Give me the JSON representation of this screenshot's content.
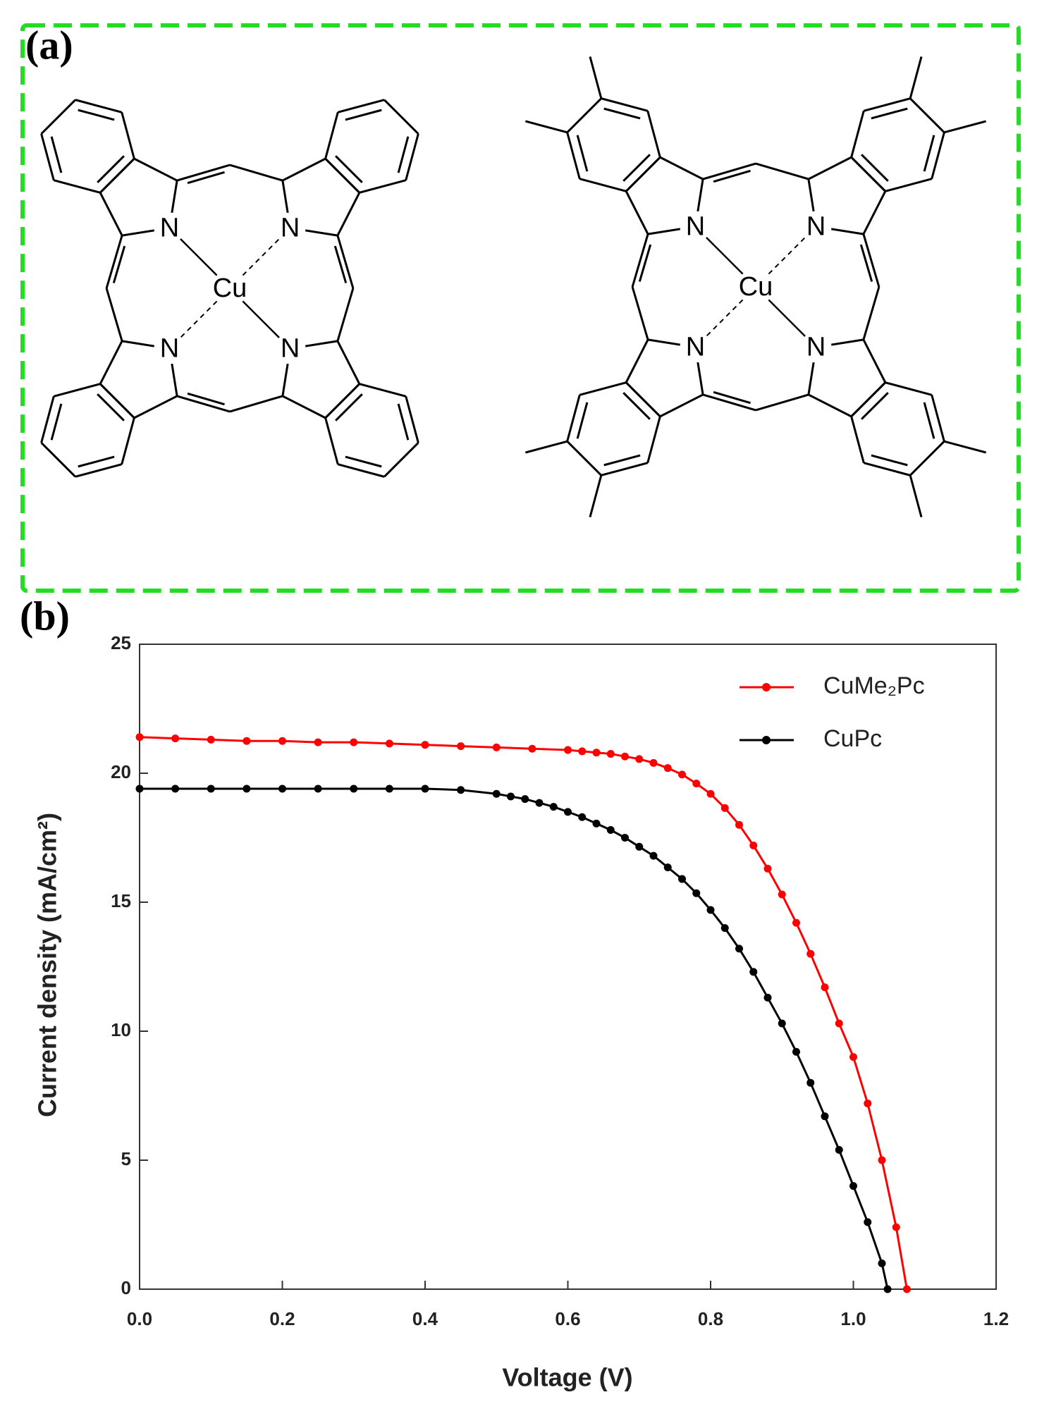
{
  "figure": {
    "panel_a_label": "(a)",
    "panel_b_label": "(b)",
    "molecules": [
      {
        "atoms": [
          "N",
          "N",
          "N",
          "N",
          "Cu"
        ]
      },
      {
        "atoms": [
          "N",
          "N",
          "N",
          "N",
          "Cu"
        ]
      }
    ]
  },
  "chart_data": {
    "type": "line",
    "x_label": "Voltage (V)",
    "y_label": "Current density (mA/cm²)",
    "xlim": [
      0,
      1.2
    ],
    "ylim": [
      0,
      25
    ],
    "xticks": [
      {
        "value": 0,
        "label": "0.0"
      },
      {
        "value": 0.2,
        "label": "0.2"
      },
      {
        "value": 0.4,
        "label": "0.4"
      },
      {
        "value": 0.6,
        "label": "0.6"
      },
      {
        "value": 0.8,
        "label": "0.8"
      },
      {
        "value": 1.0,
        "label": "1.0"
      },
      {
        "value": 1.2,
        "label": "1.2"
      }
    ],
    "yticks": [
      0,
      5,
      10,
      15,
      20,
      25
    ],
    "legend": "upper right",
    "series": [
      {
        "name": "CuMe₂Pc",
        "color": "#ff0000",
        "x": [
          0,
          0.05,
          0.1,
          0.15,
          0.2,
          0.25,
          0.3,
          0.35,
          0.4,
          0.45,
          0.5,
          0.55,
          0.6,
          0.62,
          0.64,
          0.66,
          0.68,
          0.7,
          0.72,
          0.74,
          0.76,
          0.78,
          0.8,
          0.82,
          0.84,
          0.86,
          0.88,
          0.9,
          0.92,
          0.94,
          0.96,
          0.98,
          1.0,
          1.02,
          1.04,
          1.06,
          1.075
        ],
        "values": [
          21.4,
          21.35,
          21.3,
          21.25,
          21.25,
          21.2,
          21.2,
          21.15,
          21.1,
          21.05,
          21.0,
          20.95,
          20.9,
          20.85,
          20.8,
          20.75,
          20.65,
          20.55,
          20.4,
          20.2,
          19.95,
          19.6,
          19.2,
          18.65,
          18.0,
          17.2,
          16.3,
          15.3,
          14.2,
          13.0,
          11.7,
          10.3,
          9.0,
          7.2,
          5.0,
          2.4,
          0
        ]
      },
      {
        "name": "CuPc",
        "color": "#000000",
        "x": [
          0,
          0.05,
          0.1,
          0.15,
          0.2,
          0.25,
          0.3,
          0.35,
          0.4,
          0.45,
          0.5,
          0.52,
          0.54,
          0.56,
          0.58,
          0.6,
          0.62,
          0.64,
          0.66,
          0.68,
          0.7,
          0.72,
          0.74,
          0.76,
          0.78,
          0.8,
          0.82,
          0.84,
          0.86,
          0.88,
          0.9,
          0.92,
          0.94,
          0.96,
          0.98,
          1.0,
          1.02,
          1.04,
          1.048
        ],
        "values": [
          19.4,
          19.4,
          19.4,
          19.4,
          19.4,
          19.4,
          19.4,
          19.4,
          19.4,
          19.35,
          19.2,
          19.1,
          19.0,
          18.85,
          18.7,
          18.5,
          18.3,
          18.05,
          17.8,
          17.5,
          17.15,
          16.8,
          16.35,
          15.9,
          15.35,
          14.7,
          14.0,
          13.2,
          12.3,
          11.3,
          10.3,
          9.2,
          8.0,
          6.7,
          5.4,
          4.0,
          2.6,
          1.0,
          0
        ]
      }
    ]
  }
}
